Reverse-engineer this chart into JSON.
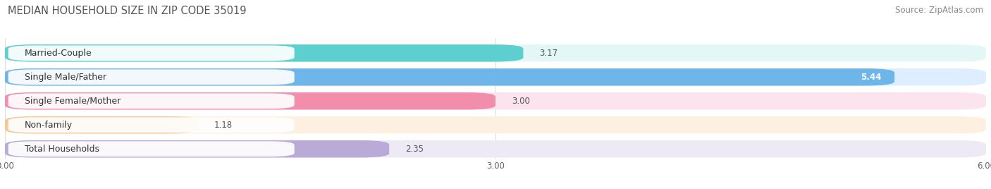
{
  "title": "MEDIAN HOUSEHOLD SIZE IN ZIP CODE 35019",
  "source": "Source: ZipAtlas.com",
  "categories": [
    "Married-Couple",
    "Single Male/Father",
    "Single Female/Mother",
    "Non-family",
    "Total Households"
  ],
  "values": [
    3.17,
    5.44,
    3.0,
    1.18,
    2.35
  ],
  "bar_colors": [
    "#5ecfcf",
    "#6eb5ea",
    "#f28dab",
    "#f5c896",
    "#b9aad8"
  ],
  "bg_colors": [
    "#e4f7f7",
    "#dceeff",
    "#fce4ef",
    "#fdf0e0",
    "#edeaf5"
  ],
  "xlim": [
    0,
    6.0
  ],
  "xticks": [
    0.0,
    3.0,
    6.0
  ],
  "xtick_labels": [
    "0.00",
    "3.00",
    "6.00"
  ],
  "title_fontsize": 10.5,
  "source_fontsize": 8.5,
  "label_fontsize": 9,
  "value_fontsize": 8.5,
  "background_color": "#ffffff"
}
